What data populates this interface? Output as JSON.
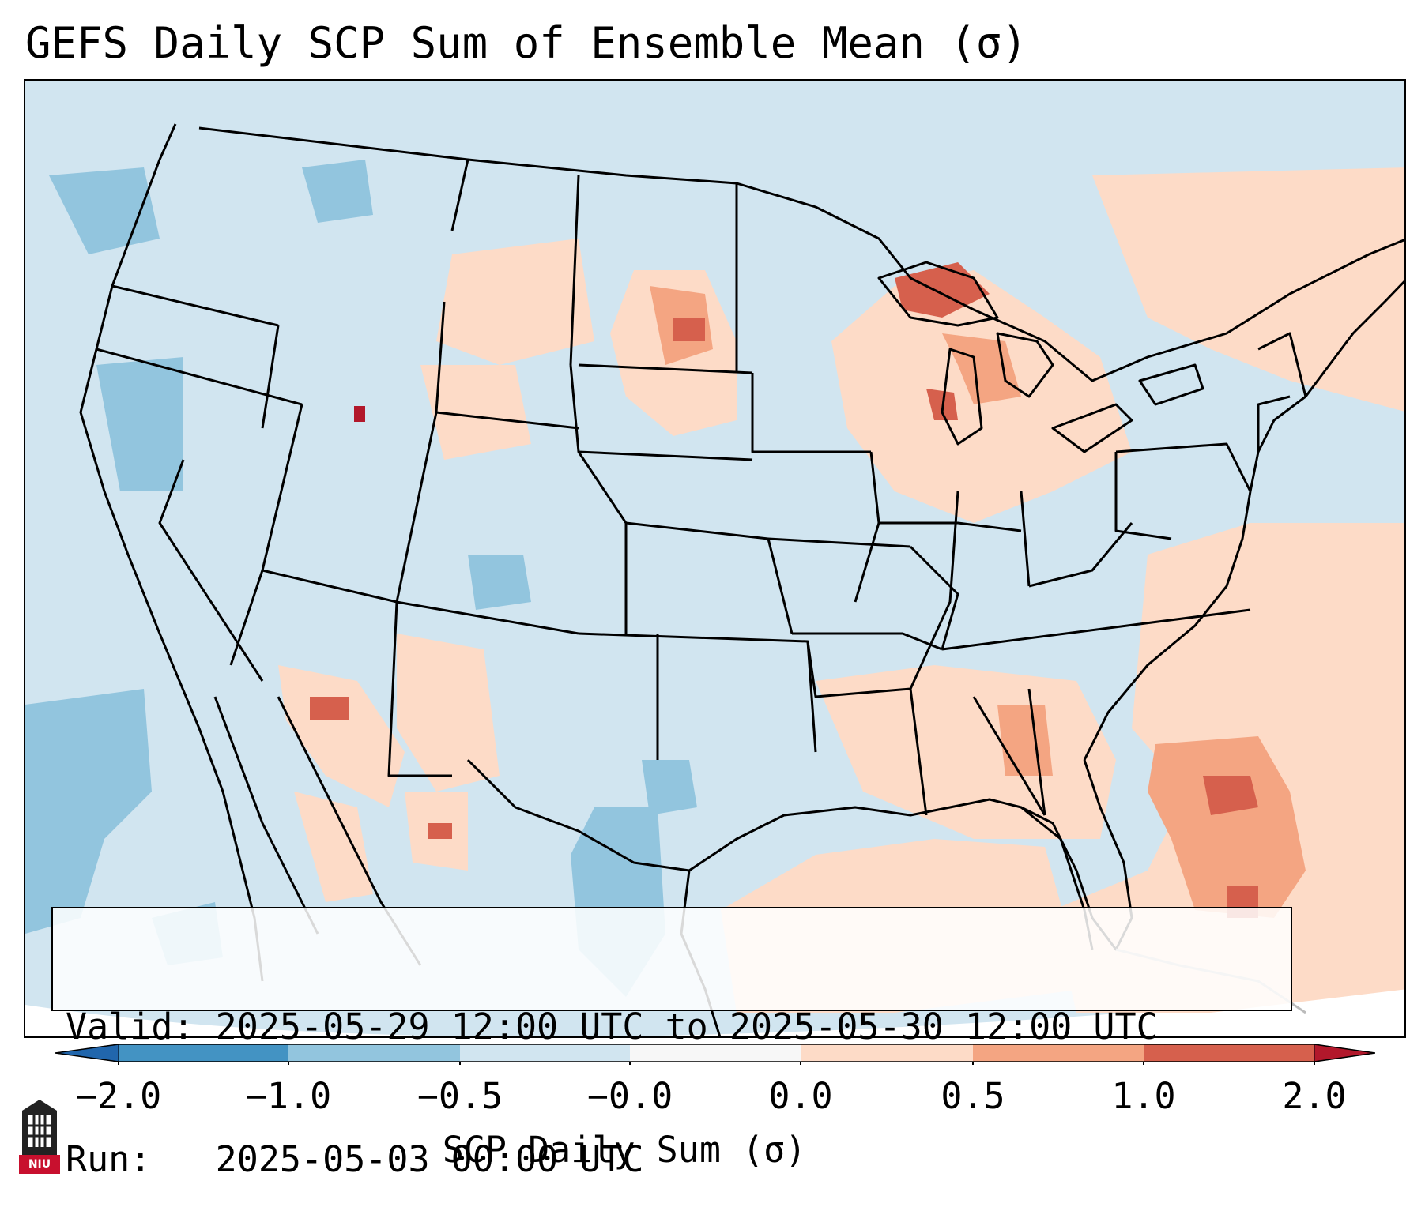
{
  "title": "GEFS Daily SCP Sum of Ensemble Mean (σ)",
  "info": {
    "valid_line": "Valid: 2025-05-29 12:00 UTC to 2025-05-30 12:00 UTC",
    "run_line": "Run:   2025-05-03 00:00 UTC"
  },
  "colorbar": {
    "label": "SCP Daily Sum (σ)",
    "ticks": [
      "−2.0",
      "−1.0",
      "−0.5",
      "−0.0",
      "0.0",
      "0.5",
      "1.0",
      "2.0"
    ],
    "colors": [
      "#2166ac",
      "#4393c3",
      "#92c5de",
      "#d1e5f0",
      "#f7f7f7",
      "#fddbc7",
      "#f4a582",
      "#d6604d",
      "#b2182b"
    ]
  },
  "logo": {
    "text": "NIU",
    "icon": "niu-logo-icon"
  }
}
